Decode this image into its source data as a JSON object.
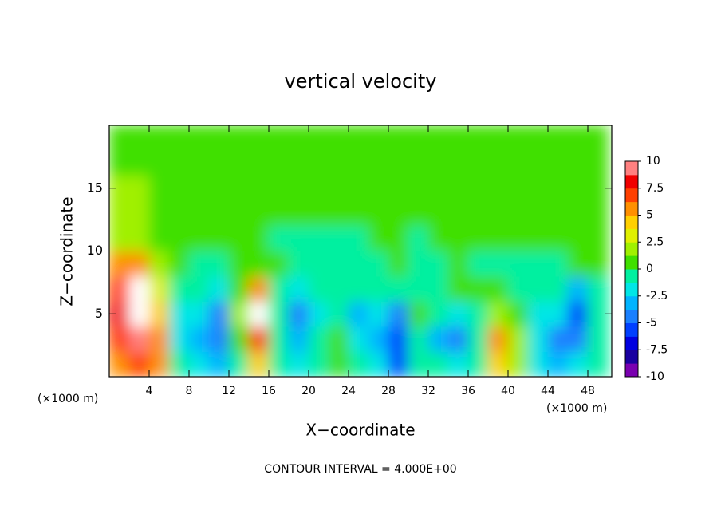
{
  "chart_data": {
    "type": "heatmap",
    "title": "vertical velocity",
    "xlabel": "X−coordinate",
    "ylabel": "Z−coordinate",
    "unit_labels": [
      "(×1000 m)",
      "(×1000 m)"
    ],
    "annotation": "CONTOUR INTERVAL = 4.000E+00",
    "xlim": [
      0,
      50.4
    ],
    "ylim": [
      0,
      20
    ],
    "xticks": [
      4,
      8,
      12,
      16,
      20,
      24,
      28,
      32,
      36,
      40,
      44,
      48
    ],
    "yticks": [
      5,
      10,
      15
    ],
    "x": [
      1,
      3,
      5,
      7,
      9,
      11,
      13,
      15,
      17,
      19,
      21,
      23,
      25,
      27,
      29,
      31,
      33,
      35,
      37,
      39,
      41,
      43,
      45,
      47,
      49
    ],
    "y": [
      1,
      3,
      5,
      7,
      9,
      11,
      13,
      15,
      17,
      19
    ],
    "values": [
      [
        6,
        7,
        5,
        -1,
        -2,
        -3,
        -1,
        4,
        -1,
        -2,
        -1,
        0,
        -1,
        -2,
        -6,
        -1,
        -1,
        -2,
        -1,
        4,
        2,
        -2,
        -3,
        -2,
        -1
      ],
      [
        7,
        9,
        6,
        -2,
        -3,
        -4,
        0,
        7,
        -1,
        -3,
        -1,
        0,
        -2,
        -3,
        -6,
        -1,
        -3,
        -4,
        -1,
        5,
        2,
        -2,
        -4,
        -4,
        -1
      ],
      [
        8,
        10,
        4,
        -2,
        -2,
        -4,
        2,
        10,
        -1,
        -5,
        -2,
        -1,
        -3,
        -2,
        -5,
        0,
        -1,
        -2,
        -1,
        2,
        0,
        -2,
        -2,
        -6,
        -1
      ],
      [
        7,
        10,
        3,
        -1,
        -1,
        -2,
        1,
        6,
        -1,
        -2,
        -1,
        -1,
        -1,
        -1,
        -1,
        -1,
        -1,
        0,
        0,
        0,
        -1,
        -1,
        -1,
        -3,
        -1
      ],
      [
        5,
        6,
        2,
        0,
        -1,
        -1,
        0,
        1,
        0,
        -1,
        -1,
        -1,
        -1,
        -1,
        0,
        -1,
        -1,
        0,
        -1,
        -1,
        -1,
        -1,
        -1,
        1,
        1
      ],
      [
        2,
        2,
        1,
        0,
        0,
        0,
        0,
        0,
        -1,
        -1,
        -1,
        -1,
        -1,
        0,
        0,
        -1,
        0,
        0,
        0,
        0,
        0,
        0,
        0,
        1,
        0
      ],
      [
        2,
        2,
        1,
        1,
        1,
        0,
        0,
        0,
        0,
        0,
        0,
        0,
        0,
        0,
        0,
        0,
        0,
        0,
        0,
        0,
        0,
        0,
        0,
        0,
        0
      ],
      [
        2,
        2,
        1,
        1,
        1,
        1,
        1,
        0,
        0,
        0,
        0,
        0,
        0,
        0,
        0,
        1,
        0,
        0,
        0,
        0,
        0,
        0,
        0,
        0,
        0
      ],
      [
        1,
        1,
        1,
        1,
        1,
        1,
        1,
        1,
        0,
        0,
        0,
        0,
        0,
        1,
        1,
        1,
        1,
        1,
        1,
        1,
        1,
        1,
        1,
        1,
        1
      ],
      [
        1,
        1,
        1,
        1,
        1,
        1,
        1,
        1,
        0,
        0,
        0,
        0,
        0,
        1,
        1,
        1,
        1,
        1,
        1,
        1,
        1,
        1,
        1,
        1,
        1
      ]
    ],
    "colorbar": {
      "clim": [
        -10,
        10
      ],
      "ticks": [
        10,
        7.5,
        5,
        2.5,
        0,
        -2.5,
        -5,
        -7.5,
        -10
      ],
      "colors": [
        "#7a00b0",
        "#1a00a0",
        "#0000e0",
        "#0040ff",
        "#1a80ff",
        "#00b4ff",
        "#00e6e6",
        "#00f0a0",
        "#40e000",
        "#a0f000",
        "#e0f000",
        "#ffd000",
        "#ff9000",
        "#ff4000",
        "#f00000",
        "#ff8080"
      ],
      "over_color": "#ffffff"
    }
  }
}
